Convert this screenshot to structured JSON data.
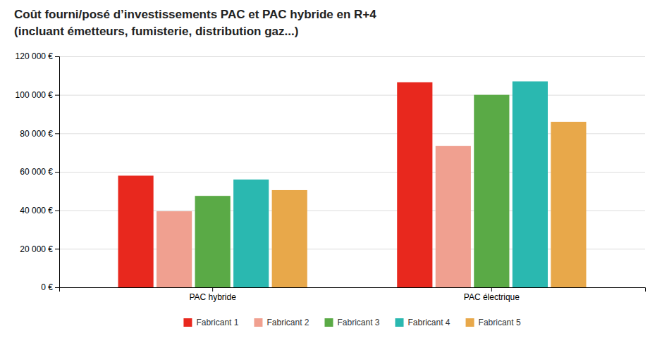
{
  "chart_data": {
    "type": "bar",
    "title": "Coût fourni/posé d’investissements PAC et PAC hybride en R+4",
    "subtitle": "(incluant émetteurs, fumisterie, distribution gaz...)",
    "categories": [
      "PAC hybride",
      "PAC électrique"
    ],
    "series": [
      {
        "name": "Fabricant 1",
        "color": "#e8281e",
        "values": [
          58000,
          106500
        ]
      },
      {
        "name": "Fabricant 2",
        "color": "#f0a090",
        "values": [
          39500,
          73500
        ]
      },
      {
        "name": "Fabricant 3",
        "color": "#5aaa46",
        "values": [
          47500,
          100000
        ]
      },
      {
        "name": "Fabricant 4",
        "color": "#2ab8b0",
        "values": [
          56000,
          107000
        ]
      },
      {
        "name": "Fabricant 5",
        "color": "#e8a84a",
        "values": [
          50500,
          86000
        ]
      }
    ],
    "ylim": [
      0,
      120000
    ],
    "yticks": [
      {
        "value": 0,
        "label": "0 €"
      },
      {
        "value": 20000,
        "label": "20 000 €"
      },
      {
        "value": 40000,
        "label": "40 000 €"
      },
      {
        "value": 60000,
        "label": "60 000 €"
      },
      {
        "value": 80000,
        "label": "80 000 €"
      },
      {
        "value": 100000,
        "label": "100 000 €"
      },
      {
        "value": 120000,
        "label": "120 000 €"
      }
    ],
    "grid": true,
    "legend": "bottom"
  }
}
